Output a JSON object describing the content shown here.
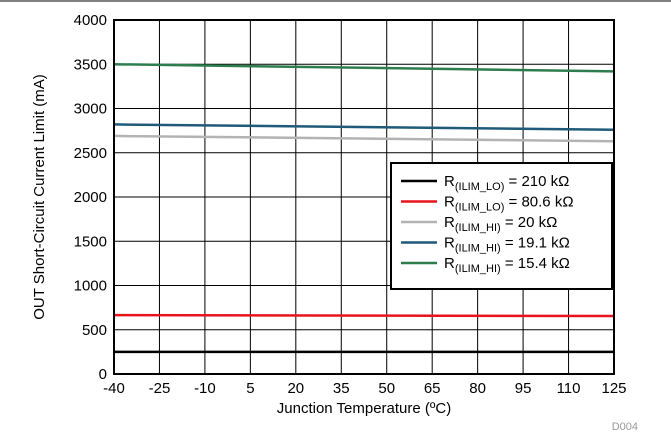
{
  "chart_data": {
    "type": "line",
    "xlabel": "Junction Temperature (ºC)",
    "ylabel": "OUT Short-Circuit Current Limit (mA)",
    "figure_code": "D004",
    "x_ticks": [
      "-40",
      "-25",
      "-10",
      "5",
      "20",
      "35",
      "50",
      "65",
      "80",
      "95",
      "110",
      "125"
    ],
    "y_ticks": [
      "0",
      "500",
      "1000",
      "1500",
      "2000",
      "2500",
      "3000",
      "3500",
      "4000"
    ],
    "xlim": [
      -40,
      125
    ],
    "ylim": [
      0,
      4000
    ],
    "grid": true,
    "legend_position": "center-right",
    "series": [
      {
        "name": "R(ILIM_LO) = 210 kΩ",
        "label_main": "R",
        "label_sub": "(ILIM_LO)",
        "label_rest": " = 210 kΩ",
        "color": "#000000",
        "x": [
          -40,
          125
        ],
        "y": [
          250,
          250
        ]
      },
      {
        "name": "R(ILIM_LO) = 80.6 kΩ",
        "label_main": "R",
        "label_sub": "(ILIM_LO)",
        "label_rest": " = 80.6 kΩ",
        "color": "#e8141c",
        "x": [
          -40,
          125
        ],
        "y": [
          665,
          655
        ]
      },
      {
        "name": "R(ILIM_HI) = 20 kΩ",
        "label_main": "R",
        "label_sub": "(ILIM_HI)",
        "label_rest": " = 20 kΩ",
        "color": "#b3b3b3",
        "x": [
          -40,
          125
        ],
        "y": [
          2690,
          2630
        ]
      },
      {
        "name": "R(ILIM_HI) = 19.1 kΩ",
        "label_main": "R",
        "label_sub": "(ILIM_HI)",
        "label_rest": " = 19.1 kΩ",
        "color": "#1f5a7a",
        "x": [
          -40,
          125
        ],
        "y": [
          2820,
          2760
        ]
      },
      {
        "name": "R(ILIM_HI) = 15.4 kΩ",
        "label_main": "R",
        "label_sub": "(ILIM_HI)",
        "label_rest": " = 15.4 kΩ",
        "color": "#2e7d4f",
        "x": [
          -40,
          125
        ],
        "y": [
          3500,
          3420
        ]
      }
    ]
  }
}
